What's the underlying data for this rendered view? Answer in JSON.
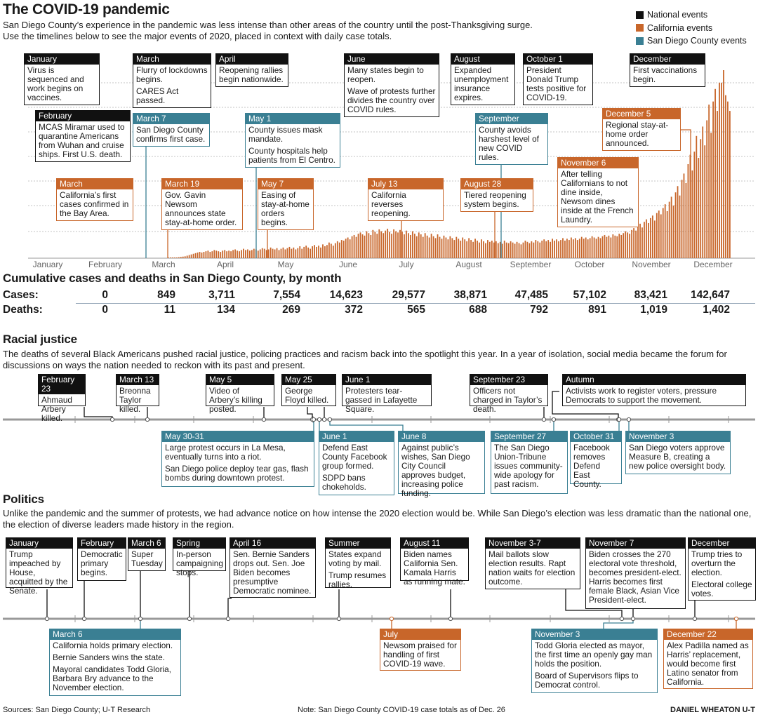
{
  "title": "The COVID-19 pandemic",
  "subtitle1": "San Diego County’s experience in the pandemic was less intense than other areas of the country until the post-Thanksgiving surge.",
  "subtitle2": "Use the timelines below to see the major events of 2020, placed in context with daily case totals.",
  "legend": [
    {
      "label": "National events",
      "color": "#111111"
    },
    {
      "label": "California events",
      "color": "#c8662a"
    },
    {
      "label": "San Diego County events",
      "color": "#3a7f93"
    }
  ],
  "chart_data": {
    "type": "bar",
    "title": "The COVID-19 pandemic",
    "xlabel": "",
    "ylabel": "",
    "color": "#c8662a",
    "x_ticks": [
      "January",
      "February",
      "March",
      "April",
      "May",
      "June",
      "July",
      "August",
      "September",
      "October",
      "November",
      "December"
    ],
    "x": "daily, March 3 – December 26, 2020",
    "values_note": "relative daily San Diego County case totals (axis unlabeled)",
    "values": [
      1,
      1,
      1,
      2,
      2,
      3,
      4,
      5,
      6,
      8,
      10,
      12,
      14,
      16,
      18,
      20,
      18,
      20,
      22,
      24,
      20,
      22,
      26,
      24,
      22,
      20,
      24,
      26,
      22,
      24,
      22,
      26,
      28,
      24,
      22,
      26,
      30,
      26,
      28,
      24,
      26,
      30,
      28,
      24,
      28,
      32,
      30,
      26,
      28,
      34,
      30,
      28,
      32,
      26,
      30,
      34,
      28,
      32,
      36,
      30,
      34,
      28,
      32,
      38,
      30,
      36,
      40,
      34,
      30,
      38,
      42,
      36,
      40,
      34,
      44,
      38,
      42,
      50,
      46,
      40,
      48,
      54,
      50,
      58,
      56,
      62,
      66,
      60,
      70,
      74,
      68,
      78,
      82,
      76,
      72,
      86,
      80,
      74,
      90,
      84,
      78,
      92,
      86,
      80,
      88,
      94,
      84,
      78,
      92,
      86,
      82,
      90,
      84,
      76,
      88,
      80,
      74,
      86,
      78,
      70,
      82,
      76,
      68,
      80,
      72,
      66,
      78,
      70,
      64,
      76,
      68,
      62,
      72,
      66,
      60,
      70,
      64,
      58,
      68,
      62,
      56,
      66,
      60,
      54,
      64,
      58,
      52,
      62,
      56,
      50,
      60,
      54,
      48,
      58,
      52,
      56,
      50,
      54,
      48,
      52,
      46,
      56,
      50,
      48,
      54,
      50,
      46,
      52,
      48,
      44,
      50,
      56,
      52,
      48,
      54,
      50,
      58,
      54,
      50,
      56,
      60,
      54,
      58,
      52,
      62,
      56,
      60,
      54,
      58,
      64,
      56,
      62,
      58,
      66,
      60,
      64,
      58,
      62,
      68,
      62,
      66,
      60,
      64,
      70,
      66,
      62,
      68,
      64,
      70,
      74,
      68,
      72,
      66,
      76,
      72,
      70,
      78,
      74,
      80,
      86,
      82,
      78,
      90,
      96,
      88,
      102,
      110,
      98,
      116,
      124,
      112,
      128,
      136,
      120,
      144,
      152,
      140,
      160,
      172,
      150,
      180,
      196,
      168,
      210,
      230,
      200,
      250,
      270,
      240,
      300,
      330,
      280,
      340,
      390,
      320,
      380,
      420,
      360,
      440,
      490,
      400,
      500,
      540,
      470,
      560,
      560,
      600,
      520,
      500,
      470
    ],
    "ylim": [
      0,
      600
    ]
  },
  "covid_boxes": [
    {
      "color": "nat",
      "head": "January",
      "lines": [
        "Virus is sequenced and work begins on vaccines."
      ]
    },
    {
      "color": "nat",
      "head": "February",
      "lines": [
        "MCAS Miramar used to quarantine Americans from Wuhan and cruise ships. First U.S. death."
      ]
    },
    {
      "color": "ca",
      "head": "March",
      "lines": [
        "California’s first cases confirmed in the Bay Area."
      ]
    },
    {
      "color": "nat",
      "head": "March",
      "lines": [
        "Flurry of lockdowns begins.",
        "CARES Act passed."
      ]
    },
    {
      "color": "sd",
      "head": "March 7",
      "lines": [
        "San Diego County confirms first case."
      ]
    },
    {
      "color": "ca",
      "head": "March 19",
      "lines": [
        "Gov. Gavin Newsom announces state stay-at-home order."
      ]
    },
    {
      "color": "nat",
      "head": "April",
      "lines": [
        "Reopening rallies begin nationwide."
      ]
    },
    {
      "color": "sd",
      "head": "May 1",
      "lines": [
        "County issues mask mandate.",
        "County hospitals help patients from El Centro."
      ]
    },
    {
      "color": "ca",
      "head": "May 7",
      "lines": [
        "Easing of stay-at-home orders begins."
      ]
    },
    {
      "color": "nat",
      "head": "June",
      "lines": [
        "Many states begin to reopen.",
        "Wave of protests further divides the country over COVID rules."
      ]
    },
    {
      "color": "ca",
      "head": "July 13",
      "lines": [
        "California reverses reopening."
      ]
    },
    {
      "color": "nat",
      "head": "August",
      "lines": [
        "Expanded unemployment insurance expires."
      ]
    },
    {
      "color": "ca",
      "head": "August 28",
      "lines": [
        "Tiered reopening system begins."
      ]
    },
    {
      "color": "sd",
      "head": "September",
      "lines": [
        "County avoids harshest level of new COVID rules."
      ]
    },
    {
      "color": "nat",
      "head": "October 1",
      "lines": [
        "President Donald Trump tests positive for COVID-19."
      ]
    },
    {
      "color": "ca",
      "head": "November 6",
      "lines": [
        "After telling Californians to not dine inside, Newsom dines inside at the French Laundry."
      ]
    },
    {
      "color": "ca",
      "head": "December 5",
      "lines": [
        "Regional stay-at-home order announced."
      ]
    },
    {
      "color": "nat",
      "head": "December",
      "lines": [
        "First vaccinations begin."
      ]
    }
  ],
  "cumulative": {
    "title": "Cumulative cases and deaths in San Diego County, by month",
    "cases_label": "Cases:",
    "deaths_label": "Deaths:",
    "cases": [
      "0",
      "849",
      "3,711",
      "7,554",
      "14,623",
      "29,577",
      "38,871",
      "47,485",
      "57,102",
      "83,421",
      "142,647"
    ],
    "deaths": [
      "0",
      "11",
      "134",
      "269",
      "372",
      "565",
      "688",
      "792",
      "891",
      "1,019",
      "1,402"
    ]
  },
  "racial": {
    "title": "Racial justice",
    "text": "The deaths of several Black Americans pushed racial justice, policing practices and racism back into the spotlight this year. In a year of isolation, social media became the forum for discussions on ways the nation needed to reckon with its past and present.",
    "boxes": [
      {
        "color": "nat",
        "head": "February 23",
        "lines": [
          "Ahmaud Arbery killed."
        ]
      },
      {
        "color": "nat",
        "head": "March 13",
        "lines": [
          "Breonna Taylor killed."
        ]
      },
      {
        "color": "nat",
        "head": "May 5",
        "lines": [
          "Video of Arbery’s killing posted."
        ]
      },
      {
        "color": "nat",
        "head": "May 25",
        "lines": [
          "George Floyd killed."
        ]
      },
      {
        "color": "nat",
        "head": "June 1",
        "lines": [
          "Protesters tear-gassed in Lafayette Square."
        ]
      },
      {
        "color": "nat",
        "head": "September 23",
        "lines": [
          "Officers not charged in Taylor’s death."
        ]
      },
      {
        "color": "nat",
        "head": "Autumn",
        "lines": [
          "Activists work to register voters, pressure Democrats to support the movement."
        ]
      },
      {
        "color": "sd",
        "head": "May 30-31",
        "lines": [
          "Large protest occurs in La Mesa, eventually turns into a riot.",
          "San Diego police deploy tear gas, flash bombs during downtown protest."
        ]
      },
      {
        "color": "sd",
        "head": "June 1",
        "lines": [
          "Defend East County Facebook group formed.",
          "SDPD bans chokeholds."
        ]
      },
      {
        "color": "sd",
        "head": "June 8",
        "lines": [
          "Against public’s wishes, San Diego City Council approves budget, increasing police funding."
        ]
      },
      {
        "color": "sd",
        "head": "September 27",
        "lines": [
          "The San Diego Union-Tribune issues community-wide apology for past racism."
        ]
      },
      {
        "color": "sd",
        "head": "October 31",
        "lines": [
          "Facebook removes Defend East County."
        ]
      },
      {
        "color": "sd",
        "head": "November 3",
        "lines": [
          "San Diego voters approve Measure B, creating a new police oversight body."
        ]
      }
    ]
  },
  "politics": {
    "title": "Politics",
    "text": "Unlike the pandemic and the summer of protests, we had advance notice on how intense the 2020 election would be. While San Diego’s election was less dramatic than the national one, the election of diverse leaders made history in the region.",
    "boxes": [
      {
        "color": "nat",
        "head": "January",
        "lines": [
          "Trump impeached by House, acquitted by the Senate."
        ]
      },
      {
        "color": "nat",
        "head": "February",
        "lines": [
          "Democratic primary begins."
        ]
      },
      {
        "color": "nat",
        "head": "March 6",
        "lines": [
          "Super Tuesday"
        ]
      },
      {
        "color": "nat",
        "head": "Spring",
        "lines": [
          "In-person campaigning stops."
        ]
      },
      {
        "color": "nat",
        "head": "April 16",
        "lines": [
          "Sen. Bernie Sanders drops out. Sen. Joe Biden becomes presumptive Democratic nominee."
        ]
      },
      {
        "color": "nat",
        "head": "Summer",
        "lines": [
          "States expand voting by mail.",
          "Trump resumes rallies."
        ]
      },
      {
        "color": "nat",
        "head": "August 11",
        "lines": [
          "Biden names California Sen. Kamala Harris as running mate."
        ]
      },
      {
        "color": "nat",
        "head": "November 3-7",
        "lines": [
          "Mail ballots slow election results. Rapt nation waits for election outcome."
        ]
      },
      {
        "color": "nat",
        "head": "November 7",
        "lines": [
          "Biden crosses the 270 electoral vote threshold, becomes president-elect. Harris becomes first female Black, Asian Vice President-elect."
        ]
      },
      {
        "color": "nat",
        "head": "December",
        "lines": [
          "Trump tries to overturn the election.",
          "Electoral college votes."
        ]
      },
      {
        "color": "sd",
        "head": "March 6",
        "lines": [
          "California holds primary election.",
          "Bernie Sanders wins the state.",
          "Mayoral candidates Todd Gloria, Barbara Bry advance to the November election."
        ]
      },
      {
        "color": "ca",
        "head": "July",
        "lines": [
          "Newsom praised for handling of first COVID-19 wave."
        ]
      },
      {
        "color": "sd",
        "head": "November 3",
        "lines": [
          "Todd Gloria elected as mayor, the first time an openly gay man holds the position.",
          "Board of Supervisors flips to Democrat control."
        ]
      },
      {
        "color": "ca",
        "head": "December 22",
        "lines": [
          "Alex Padilla named as Harris’ replacement, would become first Latino senator from California."
        ]
      }
    ]
  },
  "footer": {
    "sources": "Sources: San Diego County; U-T Research",
    "note": "Note: San Diego County COVID-19 case totals as of Dec. 26",
    "credit": "DANIEL WHEATON U-T"
  }
}
